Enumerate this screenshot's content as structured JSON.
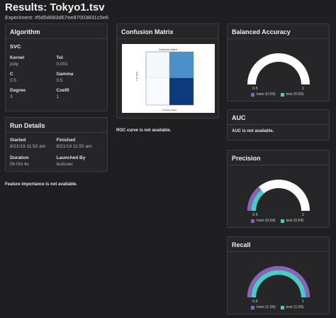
{
  "page": {
    "title": "Results: Tokyo1.tsv",
    "experiment": "Experiment: #5d5d683d67ee87003831c5e6"
  },
  "algorithm": {
    "header": "Algorithm",
    "name": "SVC",
    "params": [
      {
        "key": "Kernel",
        "value": "poly"
      },
      {
        "key": "Tol",
        "value": "0.001"
      },
      {
        "key": "C",
        "value": "0.5"
      },
      {
        "key": "Gamma",
        "value": "0.5"
      },
      {
        "key": "Degree",
        "value": "3"
      },
      {
        "key": "Coef0",
        "value": "1"
      }
    ]
  },
  "run_details": {
    "header": "Run Details",
    "fields": [
      {
        "key": "Started",
        "value": "8/21/19 11:50 am"
      },
      {
        "key": "Finished",
        "value": "8/21/19 11:50 am"
      },
      {
        "key": "Duration",
        "value": "0h 0m 4s"
      },
      {
        "key": "Launched By",
        "value": "testuser"
      }
    ]
  },
  "feature_importance_note": "Feature importance is not available.",
  "confusion_matrix": {
    "header": "Confusion Matrix",
    "image_title": "Confusion Matrix",
    "xlabel": "Predicted label",
    "ylabel": "True label"
  },
  "roc_note": "ROC curve is not available.",
  "balanced_accuracy": {
    "header": "Balanced Accuracy",
    "train_label": "train (0.50)",
    "test_label": "test (0.50)",
    "train": 0.5,
    "test": 0.5,
    "min_label": "0.5",
    "max_label": "1"
  },
  "auc": {
    "header": "AUC",
    "note": "AUC is not available."
  },
  "precision": {
    "header": "Precision",
    "train_label": "train (0.64)",
    "test_label": "test (0.64)",
    "train": 0.64,
    "test": 0.64,
    "min_label": "0.5",
    "max_label": "1"
  },
  "recall": {
    "header": "Recall",
    "train_label": "train (1.00)",
    "test_label": "test (1.00)",
    "train": 1.0,
    "test": 1.0,
    "min_label": "0.5",
    "max_label": "1"
  },
  "colors": {
    "train": "#8a63b8",
    "test": "#3fd1c3",
    "track": "#ffffff"
  }
}
